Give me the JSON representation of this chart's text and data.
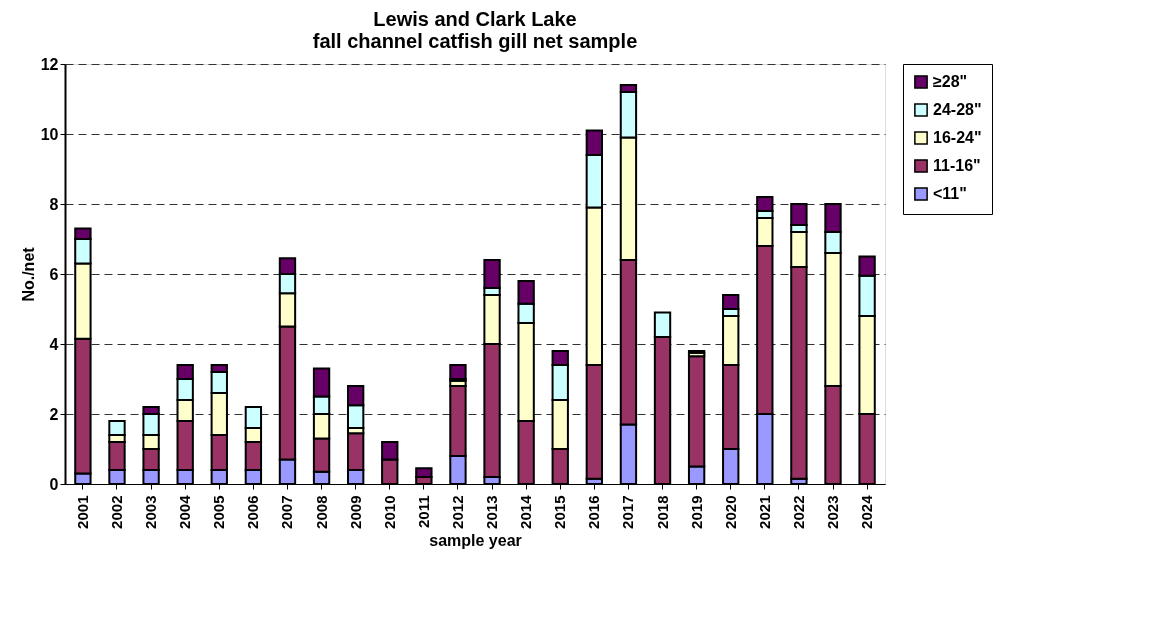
{
  "chart_data": {
    "type": "bar",
    "stacked": true,
    "title": "Lewis and Clark Lake\nfall channel catfish gill net sample",
    "xlabel": "sample year",
    "ylabel": "No./net",
    "categories": [
      "2001",
      "2002",
      "2003",
      "2004",
      "2005",
      "2006",
      "2007",
      "2008",
      "2009",
      "2010",
      "2011",
      "2012",
      "2013",
      "2014",
      "2015",
      "2016",
      "2017",
      "2018",
      "2019",
      "2020",
      "2021",
      "2022",
      "2023",
      "2024"
    ],
    "series": [
      {
        "name": "<11\"",
        "color": "#9999ff",
        "values": [
          0.3,
          0.4,
          0.4,
          0.4,
          0.4,
          0.4,
          0.7,
          0.35,
          0.4,
          null,
          null,
          0.8,
          0.2,
          null,
          null,
          0.15,
          1.7,
          null,
          0.5,
          1.0,
          2.0,
          0.15,
          null,
          null
        ]
      },
      {
        "name": "11-16\"",
        "color": "#993366",
        "values": [
          3.85,
          0.8,
          0.6,
          1.4,
          1.0,
          0.8,
          3.8,
          0.95,
          1.05,
          0.7,
          0.2,
          2.0,
          3.8,
          1.8,
          1.0,
          3.25,
          4.7,
          4.2,
          3.15,
          2.4,
          4.8,
          6.05,
          2.8,
          2.0
        ]
      },
      {
        "name": "16-24\"",
        "color": "#ffffcc",
        "values": [
          2.15,
          0.2,
          0.4,
          0.6,
          1.2,
          0.4,
          0.95,
          0.7,
          0.15,
          null,
          null,
          0.15,
          1.4,
          2.8,
          1.4,
          4.5,
          3.5,
          null,
          0.1,
          1.4,
          0.8,
          1.0,
          3.8,
          2.8
        ]
      },
      {
        "name": "24-28\"",
        "color": "#ccffff",
        "values": [
          0.7,
          0.4,
          0.6,
          0.6,
          0.6,
          0.6,
          0.55,
          0.5,
          0.65,
          null,
          null,
          0.05,
          0.2,
          0.55,
          1.0,
          1.5,
          1.3,
          0.7,
          0.05,
          0.2,
          0.2,
          0.2,
          0.6,
          1.15
        ]
      },
      {
        "name": "≥28\"",
        "color": "#660066",
        "values": [
          0.3,
          null,
          0.2,
          0.4,
          0.2,
          null,
          0.45,
          0.8,
          0.55,
          0.5,
          0.25,
          0.4,
          0.8,
          0.65,
          0.4,
          0.7,
          0.2,
          null,
          null,
          0.4,
          0.4,
          0.6,
          0.8,
          0.55
        ]
      }
    ],
    "ylim": [
      0,
      12
    ],
    "yticks": [
      0,
      2,
      4,
      6,
      8,
      10,
      12
    ],
    "grid": "y",
    "legend": "right"
  }
}
